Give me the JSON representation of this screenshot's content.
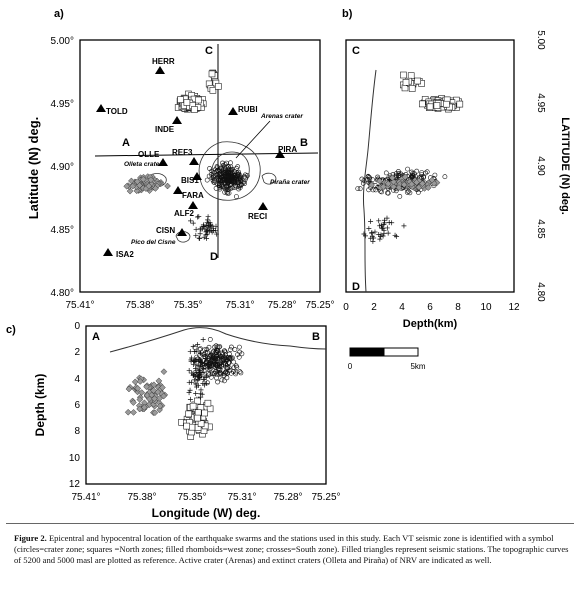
{
  "panels": {
    "a": "a)",
    "b": "b)",
    "c": "c)"
  },
  "panel_a": {
    "ylabel": "Latitude (N) deg.",
    "xticks": [
      "75.41°",
      "75.38°",
      "75.35°",
      "75.31°",
      "75.28°",
      "75.25°"
    ],
    "yticks": [
      "5.00°",
      "4.95°",
      "4.90°",
      "4.85°",
      "4.80°"
    ],
    "stations": [
      "HERR",
      "TOLD",
      "INDE",
      "RUBI",
      "OLLE",
      "REF3",
      "PIRA",
      "BIS1",
      "FARA",
      "ALF2",
      "RECI",
      "CISN",
      "ISA2"
    ],
    "features": {
      "arenas": "Arenas crater",
      "olleta": "Olleta crater",
      "pirana": "Piraña crater",
      "pico": "Pico del Cisne"
    },
    "profile_labels": {
      "A": "A",
      "B": "B",
      "C": "C",
      "D": "D"
    }
  },
  "panel_b": {
    "ylabel": "LATITUDE (N) deg.",
    "xlabel": "Depth(km)",
    "xticks": [
      "0",
      "2",
      "4",
      "6",
      "8",
      "10",
      "12"
    ],
    "yticks": [
      "5.00",
      "4.95",
      "4.90",
      "4.85",
      "4.80"
    ],
    "profile_labels": {
      "C": "C",
      "D": "D"
    }
  },
  "panel_c": {
    "ylabel": "Depth (km)",
    "xlabel": "Longitude (W) deg.",
    "xticks": [
      "75.41°",
      "75.38°",
      "75.35°",
      "75.31°",
      "75.28°",
      "75.25°"
    ],
    "yticks": [
      "0",
      "2",
      "4",
      "6",
      "8",
      "10",
      "12"
    ],
    "profile_labels": {
      "A": "A",
      "B": "B"
    }
  },
  "scalebar": {
    "start": "0",
    "end": "5km"
  },
  "caption": {
    "label": "Figure 2.",
    "text": "Epicentral and hypocentral location of the earthquake swarms and the stations used in this study.  Each VT seismic zone is identified with a symbol (circles=crater zone; squares =North zones; filled rhomboids=west zone;  crosses=South zone). Filled triangles represent seismic stations. The topographic curves of 5200 and 5000 masl are plotted as reference.  Active crater (Arenas) and extinct craters (Olleta and Piraña) of NRV are indicated as well."
  }
}
